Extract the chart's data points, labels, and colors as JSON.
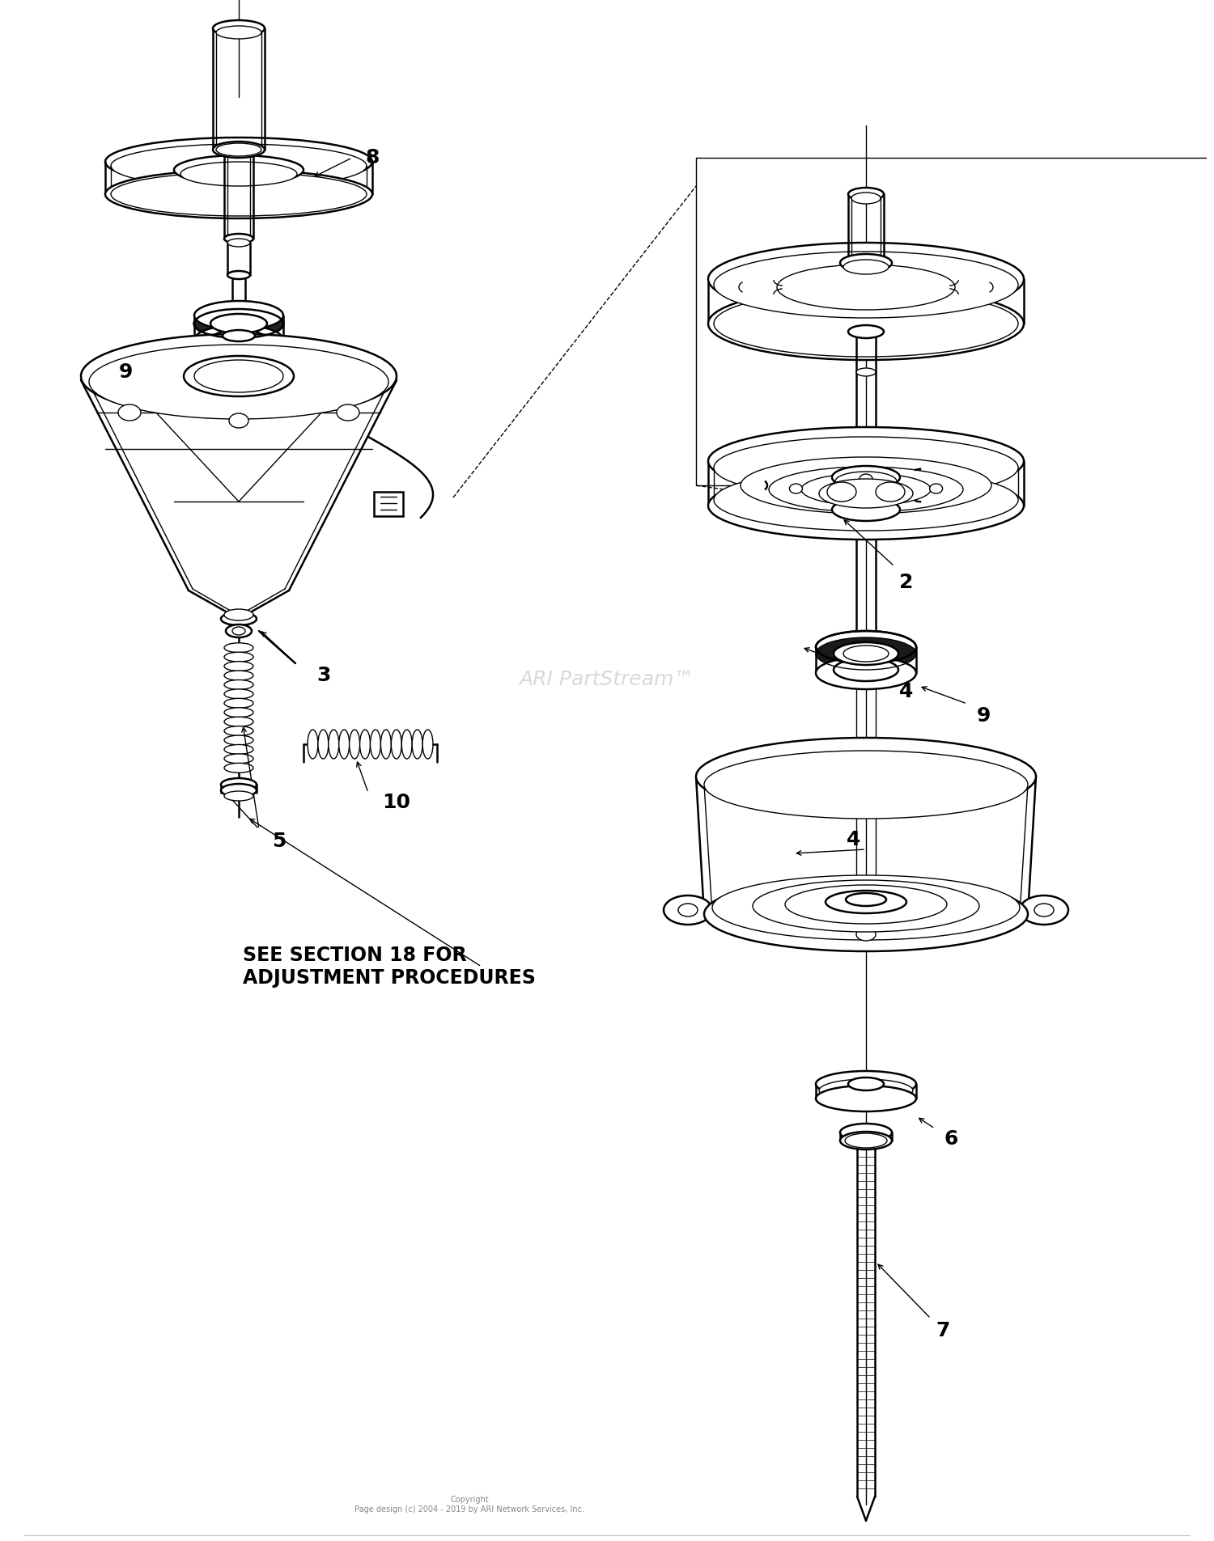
{
  "bg_color": "#ffffff",
  "line_color": "#000000",
  "watermark_text": "ARI PartStream™",
  "watermark_color": "#c8c8c8",
  "copyright_line1": "Copyright",
  "copyright_line2": "Page design (c) 2004 - 2019 by ARI Network Services, Inc.",
  "annotation_text": "SEE SECTION 18 FOR\nADJUSTMENT PROCEDURES",
  "fig_width": 15.0,
  "fig_height": 19.05,
  "dpi": 100
}
